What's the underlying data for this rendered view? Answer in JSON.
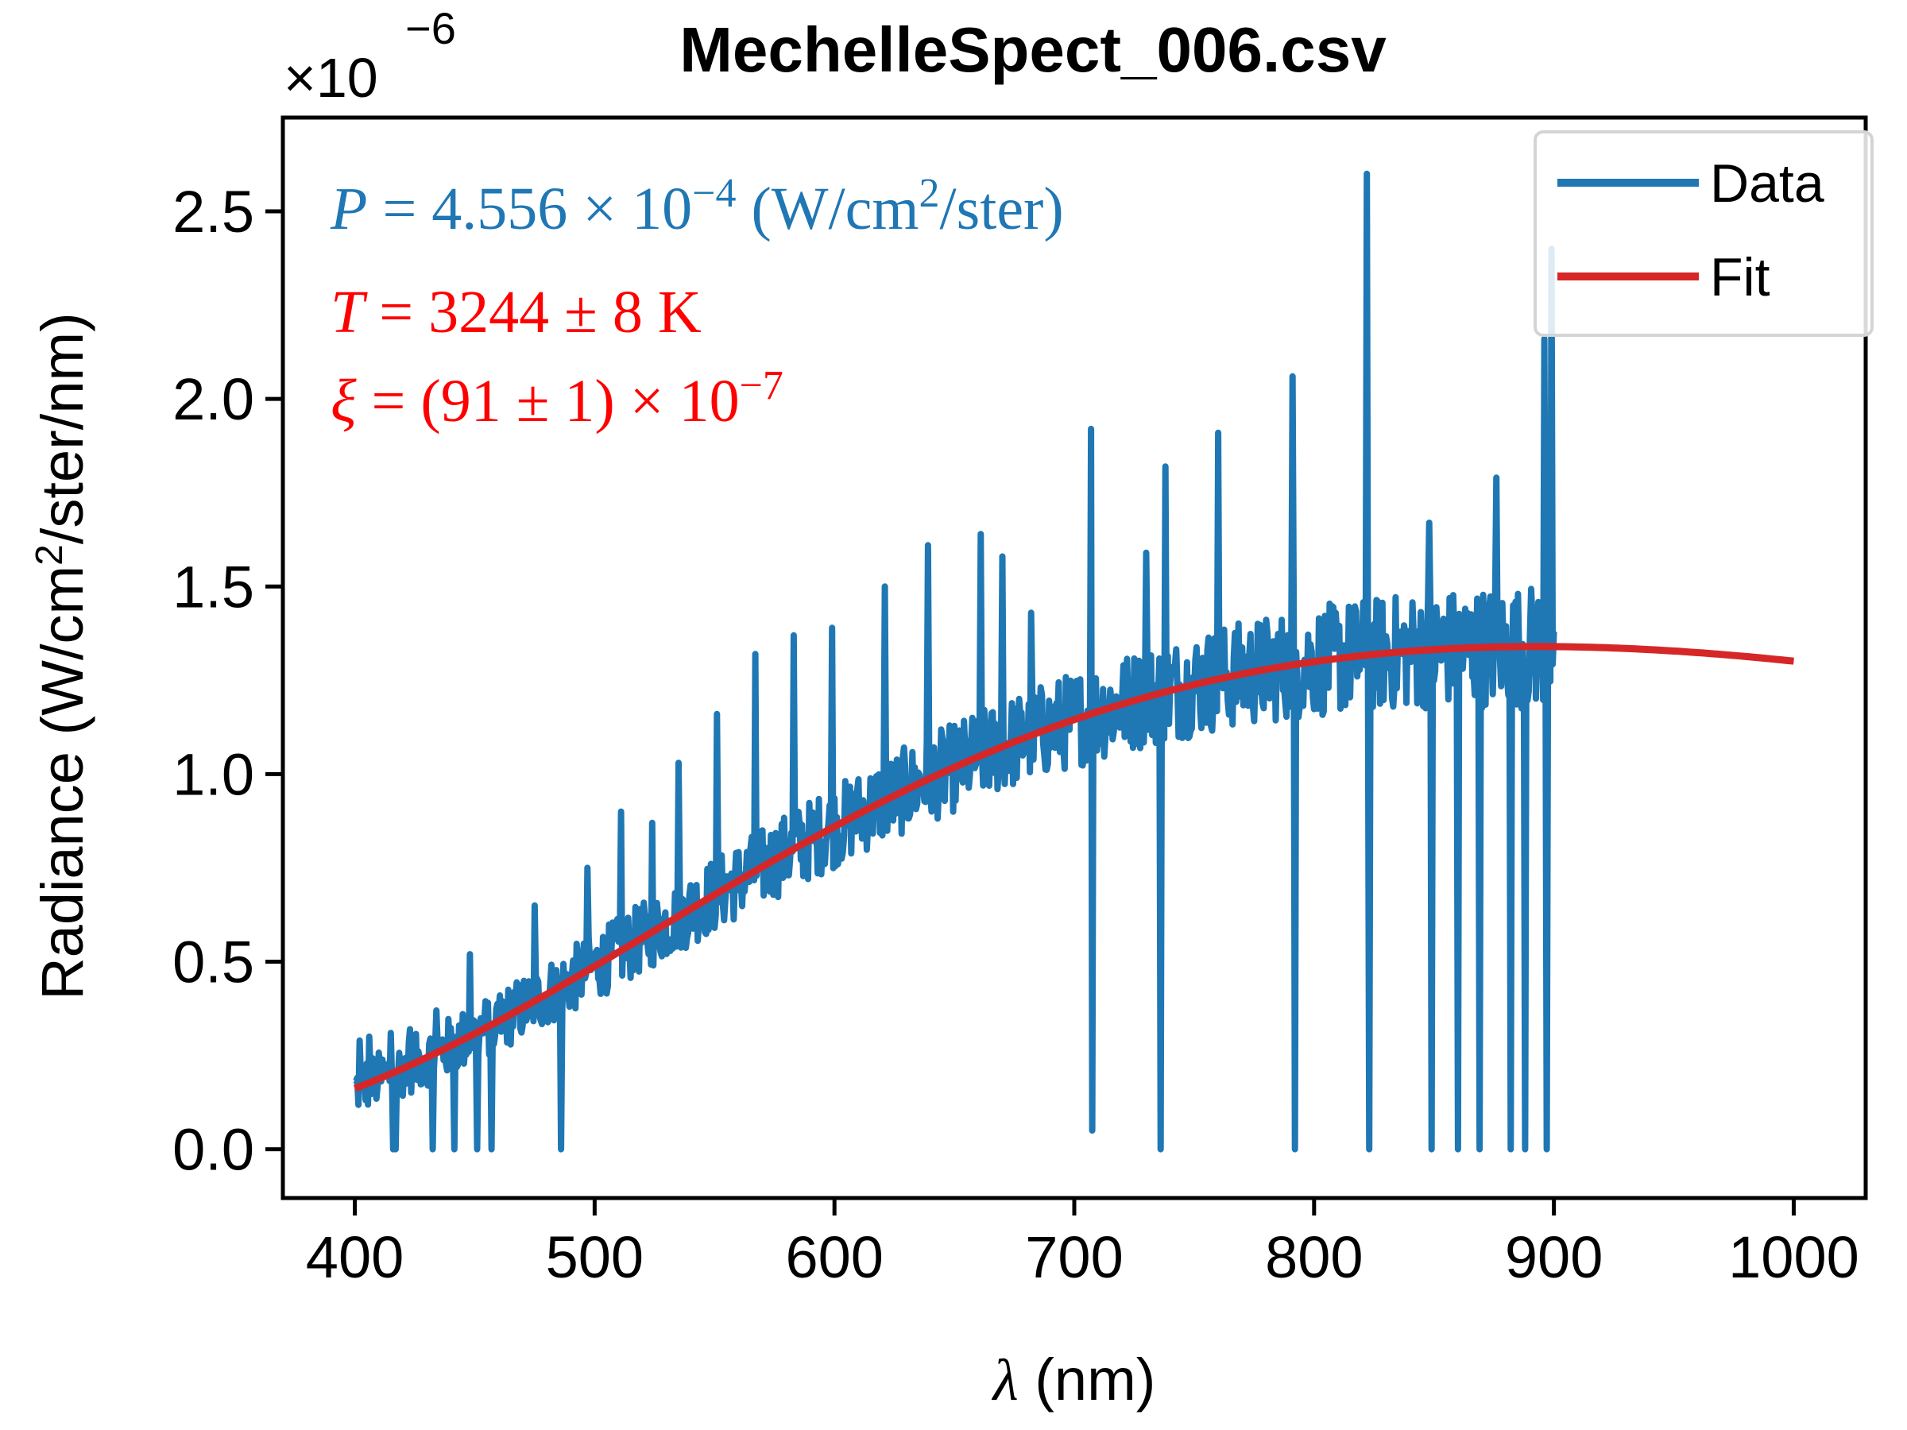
{
  "chart_data": {
    "type": "line",
    "title": "MechelleSpect_006.csv",
    "xlabel_symbol": "λ",
    "xlabel_unit": "(nm)",
    "ylabel_main": "Radiance (W/cm",
    "ylabel_sup": "2",
    "ylabel_tail": "/ster/nm)",
    "y_multiplier_base": "×10",
    "y_multiplier_exp": "−6",
    "xlim": [
      370,
      1030
    ],
    "ylim": [
      -0.13,
      2.75
    ],
    "xticks": [
      400,
      500,
      600,
      700,
      800,
      900,
      1000
    ],
    "xtick_labels": [
      "400",
      "500",
      "600",
      "700",
      "800",
      "900",
      "1000"
    ],
    "yticks": [
      0.0,
      0.5,
      1.0,
      1.5,
      2.0,
      2.5
    ],
    "ytick_labels": [
      "0.0",
      "0.5",
      "1.0",
      "1.5",
      "2.0",
      "2.5"
    ],
    "legend_position": "top-right",
    "grid": false,
    "colors": {
      "data": "#1f77b4",
      "fit": "#d62728"
    },
    "annotations": {
      "power": {
        "symbol": "P",
        "eq": " = 4.556 × 10",
        "exp": "−4",
        "unit_open": " (W/cm",
        "unit_sup": "2",
        "unit_close": "/ster)"
      },
      "temperature": {
        "symbol": "T",
        "rest": " = 3244 ± 8 K"
      },
      "emissivity": {
        "symbol": "ξ",
        "rest": " = (91 ± 1) × 10",
        "exp": "−7"
      }
    },
    "series": [
      {
        "name": "Data",
        "color": "#1f77b4",
        "x_range": [
          400,
          900
        ],
        "x_step": 1,
        "noise_amplitude": 0.12,
        "spikes": [
          [
            402,
            0.29
          ],
          [
            406,
            0.3
          ],
          [
            415,
            0.31
          ],
          [
            423,
            0.32
          ],
          [
            434,
            0.37
          ],
          [
            448,
            0.52
          ],
          [
            475,
            0.65
          ],
          [
            486,
            0.0
          ],
          [
            497,
            0.75
          ],
          [
            511,
            0.9
          ],
          [
            524,
            0.87
          ],
          [
            535,
            1.03
          ],
          [
            551,
            1.16
          ],
          [
            567,
            1.32
          ],
          [
            583,
            1.37
          ],
          [
            599,
            1.39
          ],
          [
            621,
            1.5
          ],
          [
            639,
            1.61
          ],
          [
            661,
            1.64
          ],
          [
            670,
            1.58
          ],
          [
            682,
            1.43
          ],
          [
            707,
            1.92
          ],
          [
            707.5,
            0.05
          ],
          [
            730,
            1.59
          ],
          [
            736,
            0.0
          ],
          [
            738,
            1.82
          ],
          [
            760,
            1.91
          ],
          [
            791,
            2.06
          ],
          [
            792,
            0.0
          ],
          [
            822,
            2.6
          ],
          [
            823,
            0.0
          ],
          [
            848,
            1.67
          ],
          [
            849,
            0.0
          ],
          [
            860,
            0.0
          ],
          [
            869,
            0.0
          ],
          [
            876,
            1.79
          ],
          [
            882,
            0.0
          ],
          [
            888,
            0.0
          ],
          [
            896,
            2.16
          ],
          [
            897,
            0.0
          ],
          [
            899,
            2.4
          ],
          [
            901,
            2.55
          ]
        ]
      },
      {
        "name": "Fit",
        "color": "#d62728",
        "model": "planck",
        "temperature_K": 3244,
        "x_range": [
          400,
          1000
        ],
        "peak_value": 1.34
      }
    ]
  }
}
